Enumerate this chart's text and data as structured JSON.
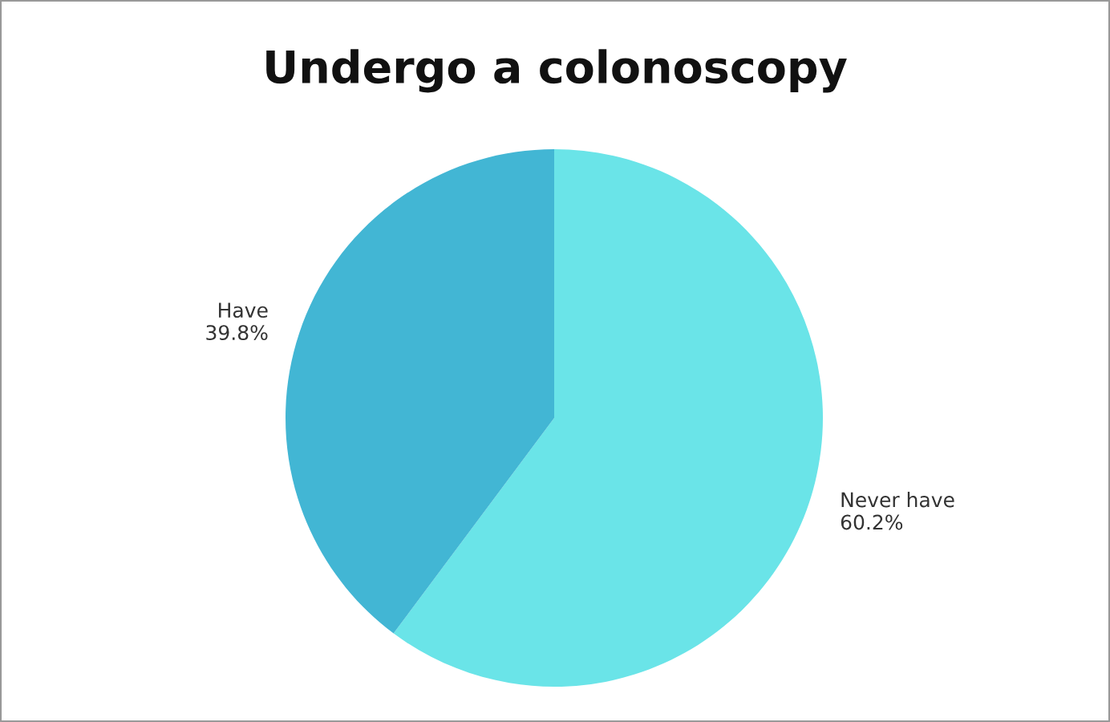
{
  "chart_data": {
    "type": "pie",
    "title": "Undergo a colonoscopy",
    "categories": [
      "Never have",
      "Have"
    ],
    "values": [
      60.2,
      39.8
    ],
    "value_labels": [
      "60.2%",
      "39.8%"
    ],
    "colors": [
      "#6ae4e8",
      "#42b6d4"
    ],
    "legend": false
  }
}
